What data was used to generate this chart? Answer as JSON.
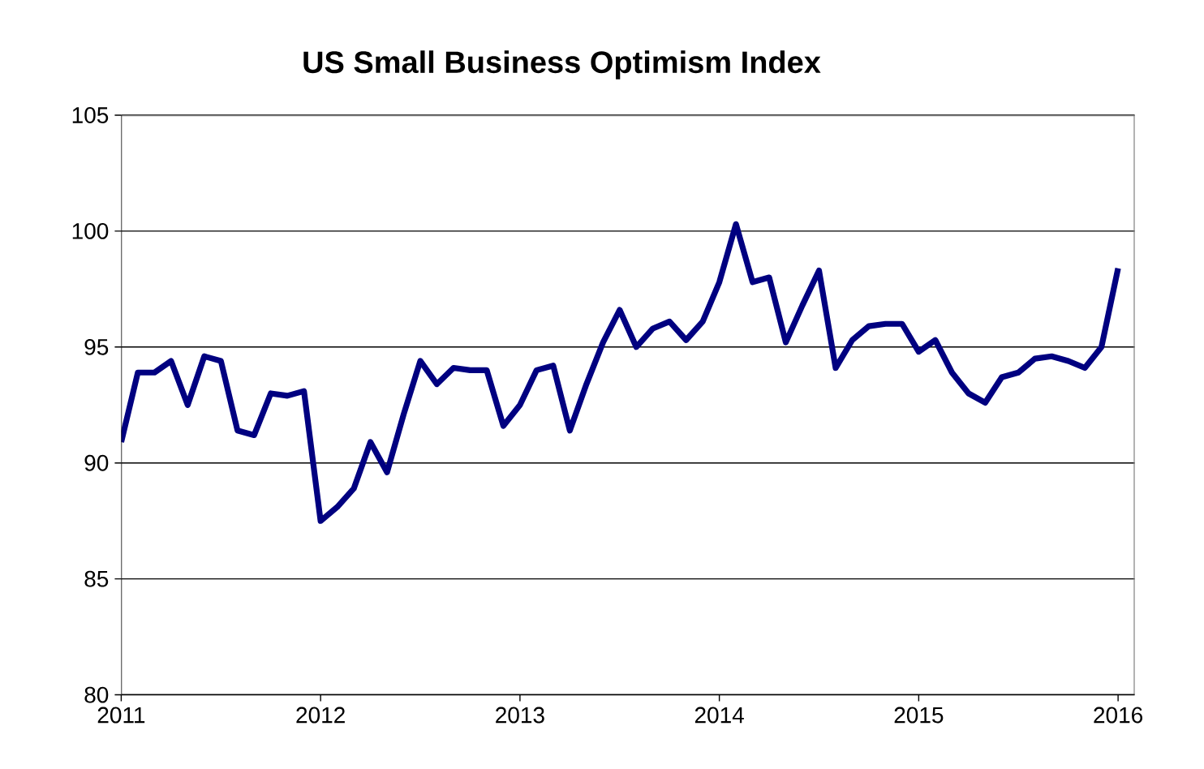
{
  "chart_data": {
    "type": "line",
    "title": "US Small Business Optimism Index",
    "x": [
      "2011-01",
      "2011-02",
      "2011-03",
      "2011-04",
      "2011-05",
      "2011-06",
      "2011-07",
      "2011-08",
      "2011-09",
      "2011-10",
      "2011-11",
      "2011-12",
      "2012-01",
      "2012-02",
      "2012-03",
      "2012-04",
      "2012-05",
      "2012-06",
      "2012-07",
      "2012-08",
      "2012-09",
      "2012-10",
      "2012-11",
      "2012-12",
      "2013-01",
      "2013-02",
      "2013-03",
      "2013-04",
      "2013-05",
      "2013-06",
      "2013-07",
      "2013-08",
      "2013-09",
      "2013-10",
      "2013-11",
      "2013-12",
      "2014-01",
      "2014-02",
      "2014-03",
      "2014-04",
      "2014-05",
      "2014-06",
      "2014-07",
      "2014-08",
      "2014-09",
      "2014-10",
      "2014-11",
      "2014-12",
      "2015-01",
      "2015-02",
      "2015-03",
      "2015-04",
      "2015-05",
      "2015-06",
      "2015-07",
      "2015-08",
      "2015-09",
      "2015-10",
      "2015-11",
      "2015-12",
      "2016-01"
    ],
    "series": [
      {
        "color": "#000080",
        "values": [
          90.9,
          93.9,
          93.9,
          94.4,
          92.5,
          94.6,
          94.4,
          91.4,
          91.2,
          93.0,
          92.9,
          93.1,
          87.5,
          88.1,
          88.9,
          90.9,
          89.6,
          92.1,
          94.4,
          93.4,
          94.1,
          94.0,
          94.0,
          91.6,
          92.5,
          94.0,
          94.2,
          91.4,
          93.4,
          95.2,
          96.6,
          95.0,
          95.8,
          96.1,
          95.3,
          96.1,
          97.8,
          100.3,
          97.8,
          98.0,
          95.2,
          96.8,
          98.3,
          94.1,
          95.3,
          95.9,
          96.0,
          96.0,
          94.8,
          95.3,
          93.9,
          93.0,
          92.6,
          93.7,
          93.9,
          94.5,
          94.6,
          94.4,
          94.1,
          95.0,
          98.4
        ]
      }
    ],
    "xlim": [
      "2011-01",
      "2016-02"
    ],
    "xticks": [
      "2011",
      "2012",
      "2013",
      "2014",
      "2015",
      "2016"
    ],
    "ylim": [
      80,
      105
    ],
    "yticks": [
      80,
      85,
      90,
      95,
      100,
      105
    ],
    "grid": "y",
    "marker": "none",
    "line_style": "solid"
  }
}
